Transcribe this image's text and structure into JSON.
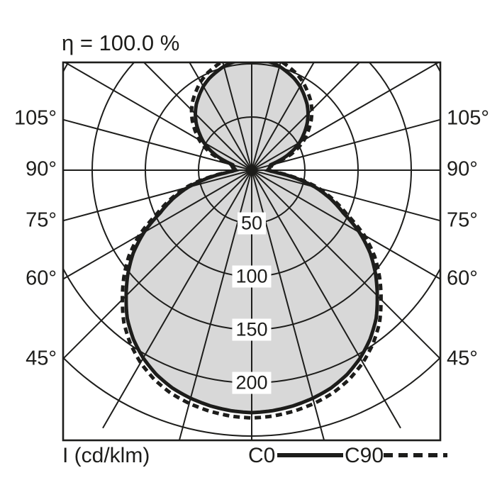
{
  "title": "η = 100.0 %",
  "colors": {
    "ink": "#1d1d1b",
    "fill": "#d8d8d8",
    "background": "#ffffff"
  },
  "legend": {
    "axis_label": "I (cd/klm)",
    "c0_label": "C0",
    "c90_label": "C90"
  },
  "chart_data": {
    "type": "polar-intensity",
    "unit": "cd/klm",
    "title": "η = 100.0 %",
    "angle_values": [
      45,
      60,
      75,
      90,
      105
    ],
    "angle_labels": [
      "45°",
      "60°",
      "75°",
      "90°",
      "105°"
    ],
    "angle_label_sides": [
      "left",
      "right"
    ],
    "radial_step_deg": 15,
    "ring_values": [
      50,
      100,
      150,
      200,
      250
    ],
    "ring_label_values": [
      50,
      100,
      150,
      200
    ],
    "ring_labels": [
      "50",
      "100",
      "150",
      "200"
    ],
    "legend_position": "bottom",
    "grid": true,
    "series": [
      {
        "name": "C0",
        "style": "solid",
        "points": [
          [
            0,
            228
          ],
          [
            5,
            227
          ],
          [
            10,
            225
          ],
          [
            15,
            222
          ],
          [
            20,
            218
          ],
          [
            25,
            212
          ],
          [
            30,
            204
          ],
          [
            35,
            194
          ],
          [
            40,
            182
          ],
          [
            45,
            167
          ],
          [
            50,
            152
          ],
          [
            55,
            136
          ],
          [
            60,
            117
          ],
          [
            65,
            95
          ],
          [
            70,
            79
          ],
          [
            75,
            62
          ],
          [
            78,
            49
          ],
          [
            81,
            37
          ],
          [
            84,
            25
          ],
          [
            87,
            18
          ],
          [
            90,
            15
          ],
          [
            94,
            16
          ],
          [
            98,
            17
          ],
          [
            102,
            17.5
          ],
          [
            106,
            18.5
          ],
          [
            108,
            24
          ],
          [
            112,
            35
          ],
          [
            116,
            44
          ],
          [
            120,
            52
          ],
          [
            125,
            60
          ],
          [
            130,
            68
          ],
          [
            135,
            75
          ],
          [
            140,
            81
          ],
          [
            145,
            86
          ],
          [
            150,
            91
          ],
          [
            155,
            95
          ],
          [
            160,
            98
          ],
          [
            165,
            101
          ],
          [
            170,
            103
          ],
          [
            175,
            104
          ],
          [
            180,
            105
          ]
        ]
      },
      {
        "name": "C90",
        "style": "dashed",
        "points": [
          [
            0,
            233
          ],
          [
            5,
            232
          ],
          [
            10,
            230
          ],
          [
            15,
            227
          ],
          [
            20,
            223
          ],
          [
            25,
            217
          ],
          [
            30,
            209
          ],
          [
            35,
            199
          ],
          [
            40,
            187
          ],
          [
            45,
            172
          ],
          [
            50,
            157
          ],
          [
            55,
            141
          ],
          [
            60,
            122
          ],
          [
            65,
            99
          ],
          [
            70,
            82
          ],
          [
            75,
            65
          ],
          [
            78,
            52
          ],
          [
            81,
            39
          ],
          [
            84,
            27
          ],
          [
            87,
            19
          ],
          [
            90,
            16
          ],
          [
            94,
            17
          ],
          [
            98,
            18
          ],
          [
            102,
            19
          ],
          [
            106,
            20.5
          ],
          [
            108,
            27
          ],
          [
            112,
            40
          ],
          [
            116,
            49
          ],
          [
            120,
            57
          ],
          [
            125,
            65
          ],
          [
            130,
            73
          ],
          [
            135,
            80
          ],
          [
            140,
            86
          ],
          [
            145,
            91
          ],
          [
            150,
            96
          ],
          [
            155,
            100
          ],
          [
            160,
            103
          ],
          [
            165,
            106
          ],
          [
            170,
            108
          ],
          [
            175,
            109
          ],
          [
            180,
            110
          ]
        ]
      }
    ]
  }
}
